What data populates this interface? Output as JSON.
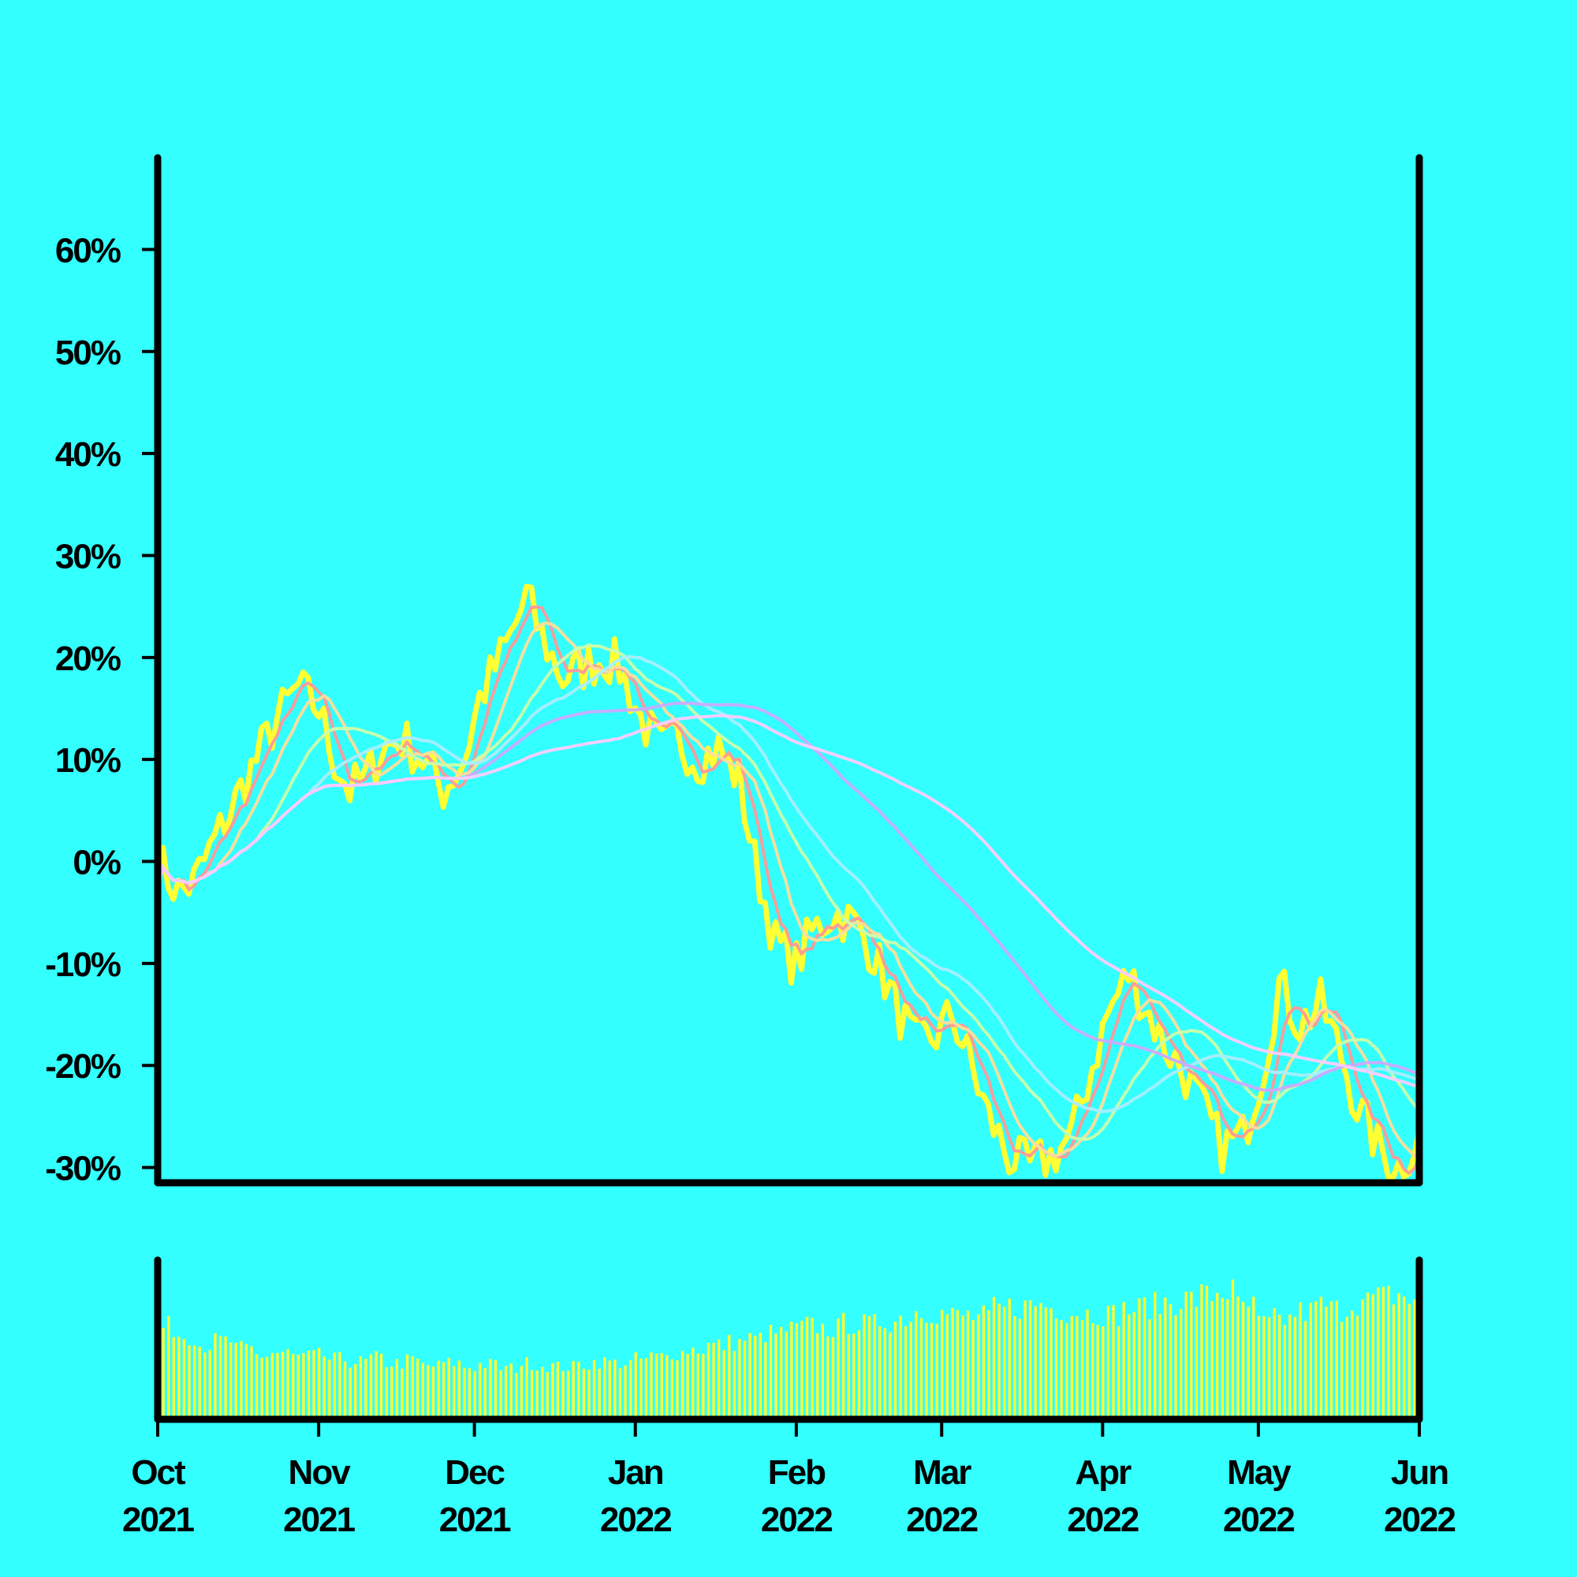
{
  "chart_data": {
    "type": "line",
    "background": "#33ffff",
    "price_color": "#ffff33",
    "volume_color": "#ffff33",
    "ylim": [
      -31.5,
      69
    ],
    "y_ticks": [
      60,
      50,
      40,
      30,
      20,
      10,
      0,
      -10,
      -20,
      -30
    ],
    "y_tick_labels": [
      "60%",
      "50%",
      "40%",
      "30%",
      "20%",
      "10%",
      "0%",
      "-10%",
      "-20%",
      "-30%"
    ],
    "x_start": "2021-10-01",
    "x_end": "2022-06-01",
    "x_ticks": [
      "2021-10-01",
      "2021-11-01",
      "2021-12-01",
      "2022-01-01",
      "2022-02-01",
      "2022-03-01",
      "2022-04-01",
      "2022-05-01",
      "2022-06-01"
    ],
    "x_tick_labels": [
      [
        "Oct",
        "2021"
      ],
      [
        "Nov",
        "2021"
      ],
      [
        "Dec",
        "2021"
      ],
      [
        "Jan",
        "2022"
      ],
      [
        "Feb",
        "2022"
      ],
      [
        "Mar",
        "2022"
      ],
      [
        "Apr",
        "2022"
      ],
      [
        "May",
        "2022"
      ],
      [
        "Jun",
        "2022"
      ]
    ],
    "price_series": {
      "x": [
        "2021-10-01",
        "2021-10-05",
        "2021-10-08",
        "2021-10-12",
        "2021-10-16",
        "2021-10-20",
        "2021-10-24",
        "2021-10-28",
        "2021-11-01",
        "2021-11-04",
        "2021-11-07",
        "2021-11-10",
        "2021-11-13",
        "2021-11-17",
        "2021-11-21",
        "2021-11-25",
        "2021-11-29",
        "2021-12-02",
        "2021-12-06",
        "2021-12-08",
        "2021-12-11",
        "2021-12-14",
        "2021-12-18",
        "2021-12-22",
        "2021-12-26",
        "2021-12-29",
        "2022-01-02",
        "2022-01-06",
        "2022-01-09",
        "2022-01-13",
        "2022-01-17",
        "2022-01-21",
        "2022-01-24",
        "2022-01-28",
        "2022-02-01",
        "2022-02-04",
        "2022-02-08",
        "2022-02-12",
        "2022-02-16",
        "2022-02-20",
        "2022-02-24",
        "2022-02-28",
        "2022-03-03",
        "2022-03-06",
        "2022-03-10",
        "2022-03-14",
        "2022-03-18",
        "2022-03-22",
        "2022-03-26",
        "2022-03-30",
        "2022-04-02",
        "2022-04-06",
        "2022-04-09",
        "2022-04-13",
        "2022-04-17",
        "2022-04-20",
        "2022-04-24",
        "2022-04-28",
        "2022-05-02",
        "2022-05-05",
        "2022-05-09",
        "2022-05-13",
        "2022-05-17",
        "2022-05-20",
        "2022-05-24",
        "2022-05-28",
        "2022-06-01"
      ],
      "y": [
        0,
        -3,
        -2,
        2,
        6,
        10,
        14,
        17,
        15,
        10,
        7,
        8,
        11,
        12,
        10,
        7,
        10,
        16,
        20,
        22,
        26,
        22,
        18,
        19,
        20,
        19,
        14,
        11,
        12,
        10,
        11,
        8,
        0,
        -8,
        -10,
        -7,
        -5,
        -6,
        -9,
        -14,
        -18,
        -17,
        -15,
        -19,
        -25,
        -29,
        -30,
        -29,
        -27,
        -20,
        -15,
        -11,
        -14,
        -18,
        -21,
        -24,
        -28,
        -27,
        -20,
        -12,
        -16,
        -14,
        -19,
        -24,
        -28,
        -30,
        -27
      ]
    },
    "volume": [
      0.72,
      0.66,
      0.58,
      0.61,
      0.55,
      0.5,
      0.52,
      0.49,
      0.5,
      0.47,
      0.45,
      0.48,
      0.44,
      0.46,
      0.42,
      0.44,
      0.41,
      0.43,
      0.4,
      0.44,
      0.42,
      0.41,
      0.43,
      0.45,
      0.44,
      0.47,
      0.49,
      0.52,
      0.55,
      0.58,
      0.6,
      0.63,
      0.67,
      0.7,
      0.73,
      0.71,
      0.75,
      0.74,
      0.77,
      0.8,
      0.85,
      0.83,
      0.81,
      0.8,
      0.86,
      0.88,
      0.9,
      0.87,
      0.84,
      0.83,
      0.82,
      0.86,
      0.89,
      0.92,
      0.94,
      0.97,
      1.0,
      0.88,
      0.75,
      0.78,
      0.84,
      0.89,
      0.86,
      0.92,
      0.95,
      0.97,
      0.93
    ],
    "ma_windows": [
      5,
      10,
      20,
      30,
      60,
      90
    ],
    "ma_colors": [
      "#ff9999",
      "#ffdd99",
      "#ccffaa",
      "#aaeeff",
      "#ccaaff",
      "#ffccff"
    ]
  }
}
